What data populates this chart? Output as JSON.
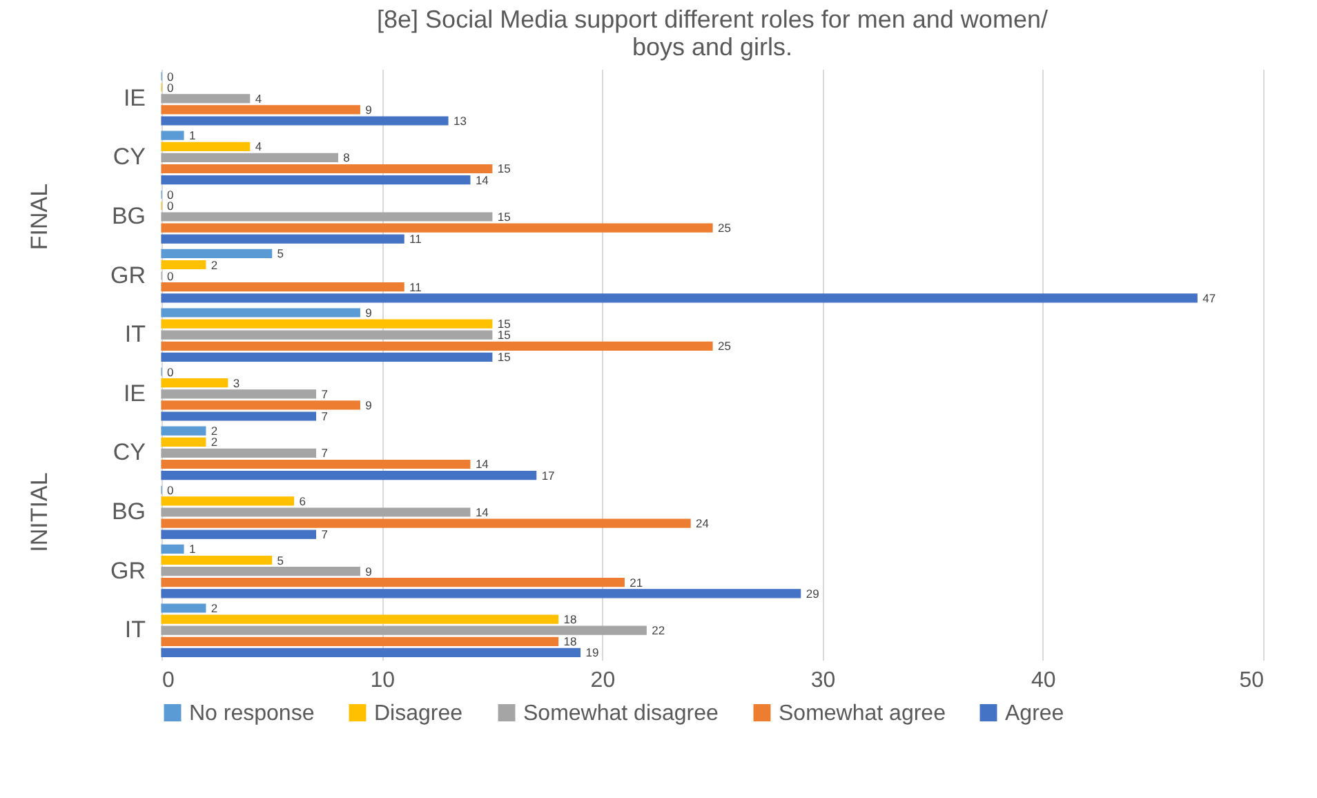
{
  "chart_data": {
    "type": "bar",
    "orientation": "horizontal",
    "title": "[8e] Social Media support different roles for men and women/\nboys and girls.",
    "categories": [
      "IE",
      "CY",
      "BG",
      "GR",
      "IT",
      "IE",
      "CY",
      "BG",
      "GR",
      "IT"
    ],
    "series": [
      {
        "name": "No response",
        "color": "#5b9bd5",
        "values": [
          0,
          1,
          0,
          5,
          9,
          0,
          2,
          0,
          1,
          2
        ]
      },
      {
        "name": "Disagree",
        "color": "#ffc000",
        "values": [
          0,
          4,
          0,
          2,
          15,
          3,
          2,
          6,
          5,
          18
        ]
      },
      {
        "name": "Somewhat disagree",
        "color": "#a5a5a5",
        "values": [
          4,
          8,
          15,
          0,
          15,
          7,
          7,
          14,
          9,
          22
        ]
      },
      {
        "name": "Somewhat agree",
        "color": "#ed7d31",
        "values": [
          9,
          15,
          25,
          11,
          25,
          9,
          14,
          24,
          21,
          18
        ]
      },
      {
        "name": "Agree",
        "color": "#4472c4",
        "values": [
          13,
          14,
          11,
          47,
          15,
          7,
          17,
          7,
          29,
          19
        ]
      }
    ],
    "annotations": [
      "FINAL",
      "INITIAL"
    ],
    "xlim": [
      0,
      50
    ],
    "xticks": [
      0,
      10,
      20,
      30,
      40,
      50
    ],
    "grid": "x",
    "legend": "bottom",
    "data_labels": true
  }
}
